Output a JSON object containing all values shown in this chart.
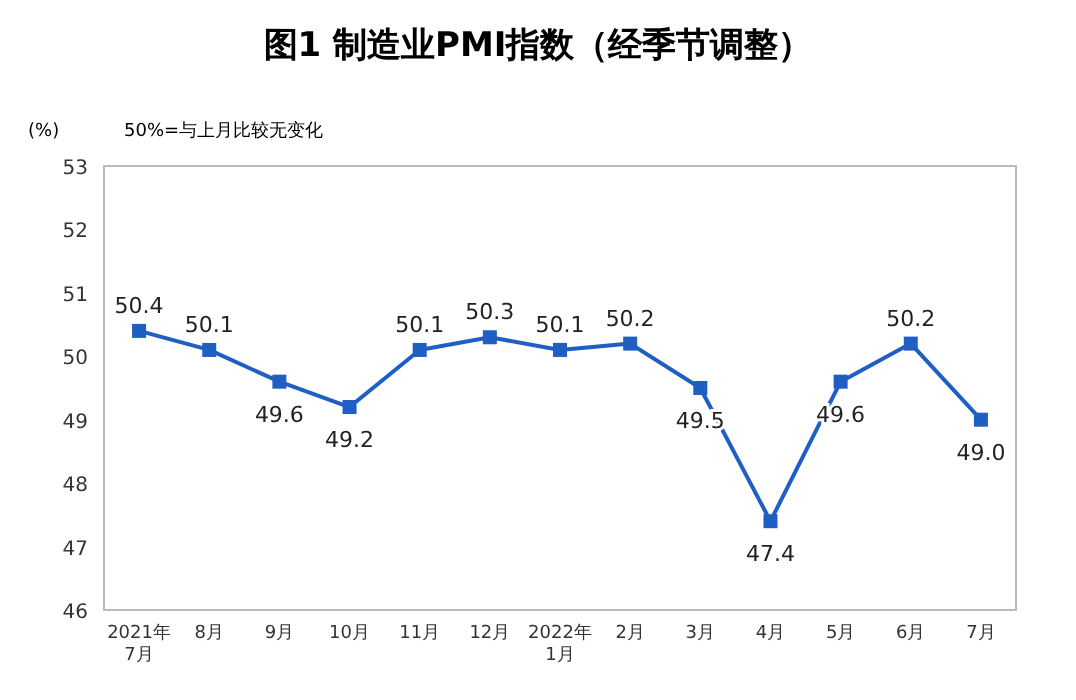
{
  "chart_data": {
    "type": "line",
    "title": "图1 制造业PMI指数（经季节调整）",
    "ylabel": "(%)",
    "annotations": [
      "50%=与上月比较无变化"
    ],
    "categories": [
      "2021年\n7月",
      "8月",
      "9月",
      "10月",
      "11月",
      "12月",
      "2022年\n1月",
      "2月",
      "3月",
      "4月",
      "5月",
      "6月",
      "7月"
    ],
    "series": [
      {
        "color": "#1f5fc4",
        "values": [
          50.4,
          50.1,
          49.6,
          49.2,
          50.1,
          50.3,
          50.1,
          50.2,
          49.5,
          47.4,
          49.6,
          50.2,
          49.0
        ],
        "value_labels": [
          "50.4",
          "50.1",
          "49.6",
          "49.2",
          "50.1",
          "50.3",
          "50.1",
          "50.2",
          "49.5",
          "47.4",
          "49.6",
          "50.2",
          "49.0"
        ]
      }
    ],
    "ylim": [
      46,
      53
    ],
    "yticks": [
      46,
      47,
      48,
      49,
      50,
      51,
      52,
      53
    ],
    "marker": "square",
    "grid": false
  }
}
